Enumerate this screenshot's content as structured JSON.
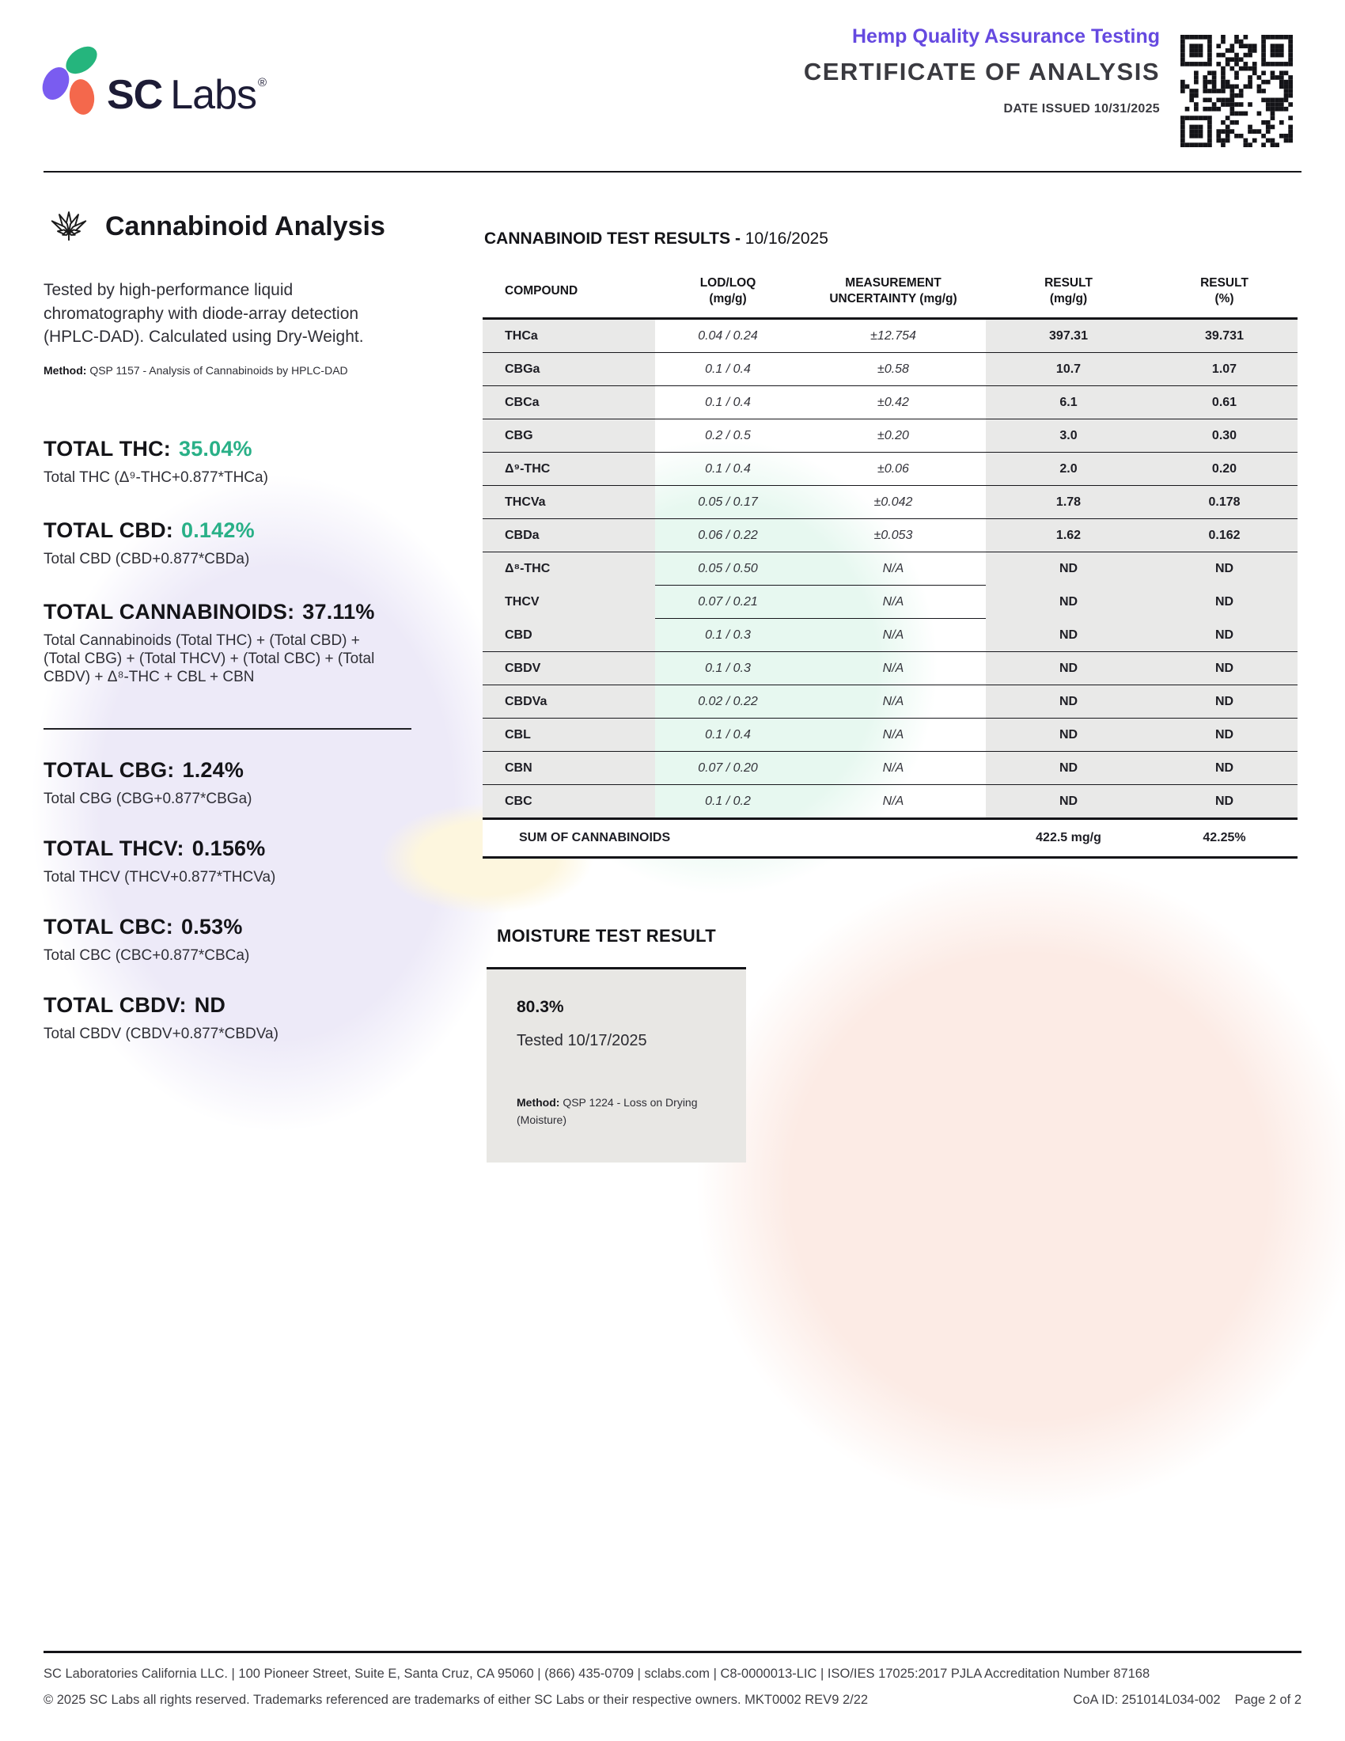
{
  "header": {
    "logo_sc": "SC",
    "logo_labs": "Labs",
    "registered": "®",
    "program_title": "Hemp Quality Assurance Testing",
    "doc_title": "CERTIFICATE OF ANALYSIS",
    "date_issued": "DATE ISSUED 10/31/2025"
  },
  "colors": {
    "accent_purple": "#6549e0",
    "accent_green": "#29b087",
    "logo_purple": "#7a5cf0",
    "logo_green": "#25b57d",
    "logo_coral": "#f4684c"
  },
  "cannabinoid_analysis": {
    "section_title": "Cannabinoid Analysis",
    "description": "Tested by high-performance liquid chromatography with diode-array detection (HPLC-DAD). Calculated using Dry-Weight.",
    "method_label": "Method:",
    "method_text": "QSP 1157 - Analysis of Cannabinoids by HPLC-DAD",
    "totals_primary": [
      {
        "label": "TOTAL THC:",
        "value": "35.04%",
        "formula": "Total THC (Δ⁹-THC+0.877*THCa)"
      },
      {
        "label": "TOTAL CBD:",
        "value": "0.142%",
        "formula": "Total CBD (CBD+0.877*CBDa)"
      },
      {
        "label": "TOTAL CANNABINOIDS:",
        "value": "37.11%",
        "formula": "Total Cannabinoids (Total THC) + (Total CBD) + (Total CBG) + (Total THCV) + (Total CBC) + (Total CBDV) + Δ⁸-THC + CBL + CBN"
      }
    ],
    "totals_secondary": [
      {
        "label": "TOTAL CBG:",
        "value": "1.24%",
        "formula": "Total CBG (CBG+0.877*CBGa)"
      },
      {
        "label": "TOTAL THCV:",
        "value": "0.156%",
        "formula": "Total THCV (THCV+0.877*THCVa)"
      },
      {
        "label": "TOTAL CBC:",
        "value": "0.53%",
        "formula": "Total CBC (CBC+0.877*CBCa)"
      },
      {
        "label": "TOTAL CBDV:",
        "value": "ND",
        "formula": "Total CBDV (CBDV+0.877*CBDVa)"
      }
    ]
  },
  "results_table": {
    "title_bold": "CANNABINOID TEST RESULTS -",
    "title_date": "10/16/2025",
    "columns": [
      {
        "line1": "COMPOUND",
        "line2": ""
      },
      {
        "line1": "LOD/LOQ",
        "line2": "(mg/g)"
      },
      {
        "line1": "MEASUREMENT",
        "line2": "UNCERTAINTY (mg/g)"
      },
      {
        "line1": "RESULT",
        "line2": "(mg/g)"
      },
      {
        "line1": "RESULT",
        "line2": "(%)"
      }
    ],
    "rows": [
      {
        "compound": "THCa",
        "lod": "0.04 / 0.24",
        "uncertainty": "±12.754",
        "result_mg": "397.31",
        "result_pct": "39.731",
        "divider": "none"
      },
      {
        "compound": "CBGa",
        "lod": "0.1 / 0.4",
        "uncertainty": "±0.58",
        "result_mg": "10.7",
        "result_pct": "1.07",
        "divider": "full"
      },
      {
        "compound": "CBCa",
        "lod": "0.1 / 0.4",
        "uncertainty": "±0.42",
        "result_mg": "6.1",
        "result_pct": "0.61",
        "divider": "full"
      },
      {
        "compound": "CBG",
        "lod": "0.2 / 0.5",
        "uncertainty": "±0.20",
        "result_mg": "3.0",
        "result_pct": "0.30",
        "divider": "full"
      },
      {
        "compound": "Δ⁹-THC",
        "lod": "0.1 / 0.4",
        "uncertainty": "±0.06",
        "result_mg": "2.0",
        "result_pct": "0.20",
        "divider": "full"
      },
      {
        "compound": "THCVa",
        "lod": "0.05 / 0.17",
        "uncertainty": "±0.042",
        "result_mg": "1.78",
        "result_pct": "0.178",
        "divider": "full"
      },
      {
        "compound": "CBDa",
        "lod": "0.06 / 0.22",
        "uncertainty": "±0.053",
        "result_mg": "1.62",
        "result_pct": "0.162",
        "divider": "full"
      },
      {
        "compound": "Δ⁸-THC",
        "lod": "0.05 / 0.50",
        "uncertainty": "N/A",
        "result_mg": "ND",
        "result_pct": "ND",
        "divider": "full"
      },
      {
        "compound": "THCV",
        "lod": "0.07 / 0.21",
        "uncertainty": "N/A",
        "result_mg": "ND",
        "result_pct": "ND",
        "divider": "partial"
      },
      {
        "compound": "CBD",
        "lod": "0.1 / 0.3",
        "uncertainty": "N/A",
        "result_mg": "ND",
        "result_pct": "ND",
        "divider": "partial"
      },
      {
        "compound": "CBDV",
        "lod": "0.1 / 0.3",
        "uncertainty": "N/A",
        "result_mg": "ND",
        "result_pct": "ND",
        "divider": "full"
      },
      {
        "compound": "CBDVa",
        "lod": "0.02 / 0.22",
        "uncertainty": "N/A",
        "result_mg": "ND",
        "result_pct": "ND",
        "divider": "full"
      },
      {
        "compound": "CBL",
        "lod": "0.1 / 0.4",
        "uncertainty": "N/A",
        "result_mg": "ND",
        "result_pct": "ND",
        "divider": "full"
      },
      {
        "compound": "CBN",
        "lod": "0.07 / 0.20",
        "uncertainty": "N/A",
        "result_mg": "ND",
        "result_pct": "ND",
        "divider": "full"
      },
      {
        "compound": "CBC",
        "lod": "0.1 / 0.2",
        "uncertainty": "N/A",
        "result_mg": "ND",
        "result_pct": "ND",
        "divider": "full"
      }
    ],
    "sum_row": {
      "label": "SUM OF CANNABINOIDS",
      "result_mg": "422.5 mg/g",
      "result_pct": "42.25%"
    }
  },
  "moisture": {
    "section_title": "MOISTURE TEST RESULT",
    "value": "80.3%",
    "tested": "Tested 10/17/2025",
    "method_label": "Method:",
    "method_text": "QSP 1224 - Loss on Drying (Moisture)"
  },
  "footer": {
    "line1": "SC Laboratories California LLC. | 100 Pioneer Street, Suite E, Santa Cruz, CA 95060 | (866) 435-0709 | sclabs.com | C8-0000013-LIC | ISO/IES 17025:2017 PJLA Accreditation Number 87168",
    "line2_left": "© 2025 SC Labs all rights reserved. Trademarks referenced are trademarks of either SC Labs or their respective owners. MKT0002 REV9 2/22",
    "coa_id": "CoA ID: 251014L034-002",
    "page": "Page 2 of 2"
  }
}
